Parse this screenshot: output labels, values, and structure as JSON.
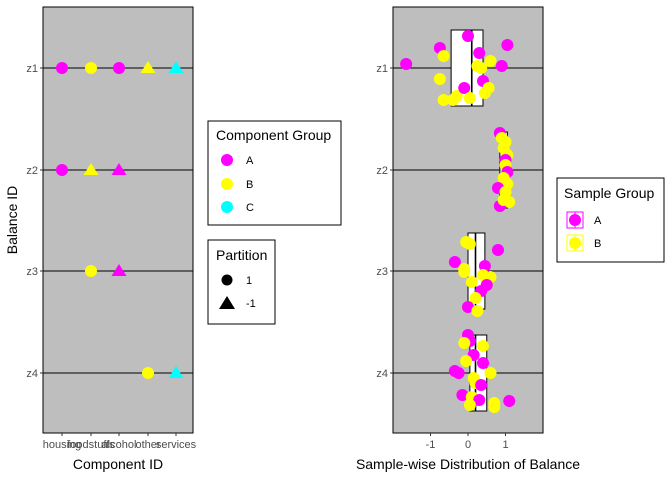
{
  "chart_data": [
    {
      "type": "scatter",
      "xlabel": "Component ID",
      "ylabel": "Balance ID",
      "x_categories": [
        "housing",
        "foodstuffs",
        "alcohol",
        "other",
        "services"
      ],
      "y_categories": [
        "z1",
        "z2",
        "z3",
        "z4"
      ],
      "group_colors": {
        "A": "#ff00ff",
        "B": "#ffff00",
        "C": "#00ffff"
      },
      "points": [
        {
          "balance": "z1",
          "component": "housing",
          "group": "A",
          "partition": "1"
        },
        {
          "balance": "z1",
          "component": "foodstuffs",
          "group": "B",
          "partition": "1"
        },
        {
          "balance": "z1",
          "component": "alcohol",
          "group": "A",
          "partition": "1"
        },
        {
          "balance": "z1",
          "component": "other",
          "group": "B",
          "partition": "-1"
        },
        {
          "balance": "z1",
          "component": "services",
          "group": "C",
          "partition": "-1"
        },
        {
          "balance": "z2",
          "component": "housing",
          "group": "A",
          "partition": "1"
        },
        {
          "balance": "z2",
          "component": "foodstuffs",
          "group": "B",
          "partition": "-1"
        },
        {
          "balance": "z2",
          "component": "alcohol",
          "group": "A",
          "partition": "-1"
        },
        {
          "balance": "z3",
          "component": "foodstuffs",
          "group": "B",
          "partition": "1"
        },
        {
          "balance": "z3",
          "component": "alcohol",
          "group": "A",
          "partition": "-1"
        },
        {
          "balance": "z4",
          "component": "other",
          "group": "B",
          "partition": "1"
        },
        {
          "balance": "z4",
          "component": "services",
          "group": "C",
          "partition": "-1"
        }
      ],
      "legends": [
        {
          "title": "Component Group",
          "items": [
            {
              "label": "A",
              "color": "#ff00ff"
            },
            {
              "label": "B",
              "color": "#ffff00"
            },
            {
              "label": "C",
              "color": "#00ffff"
            }
          ]
        },
        {
          "title": "Partition",
          "items": [
            {
              "label": "1",
              "shape": "circle"
            },
            {
              "label": "-1",
              "shape": "triangle"
            }
          ]
        }
      ]
    },
    {
      "type": "boxplot+jitter",
      "xlabel": "Sample-wise Distribution of Balance",
      "ylabel": "",
      "xlim": [
        -2.0,
        2.0
      ],
      "x_ticks": [
        -1,
        0,
        1
      ],
      "y_categories": [
        "z1",
        "z2",
        "z3",
        "z4"
      ],
      "group_colors": {
        "A": "#ff00ff",
        "B": "#ffff00"
      },
      "boxes": [
        {
          "balance": "z1",
          "q1": -0.45,
          "median": 0.1,
          "q3": 0.4
        },
        {
          "balance": "z2",
          "q1": 0.85,
          "median": 0.95,
          "q3": 1.05
        },
        {
          "balance": "z3",
          "q1": 0.0,
          "median": 0.2,
          "q3": 0.45
        },
        {
          "balance": "z4",
          "q1": 0.05,
          "median": 0.2,
          "q3": 0.5
        }
      ],
      "points": [
        {
          "balance": "z1",
          "value": -1.65,
          "group": "A",
          "jitter": 0.04
        },
        {
          "balance": "z1",
          "value": -0.75,
          "group": "A",
          "jitter": 0.2
        },
        {
          "balance": "z1",
          "value": -0.65,
          "group": "B",
          "jitter": 0.12
        },
        {
          "balance": "z1",
          "value": -0.75,
          "group": "B",
          "jitter": -0.11
        },
        {
          "balance": "z1",
          "value": -0.65,
          "group": "B",
          "jitter": -0.32
        },
        {
          "balance": "z1",
          "value": -0.4,
          "group": "B",
          "jitter": -0.32
        },
        {
          "balance": "z1",
          "value": -0.3,
          "group": "B",
          "jitter": -0.28
        },
        {
          "balance": "z1",
          "value": -0.1,
          "group": "A",
          "jitter": -0.2
        },
        {
          "balance": "z1",
          "value": 0.0,
          "group": "A",
          "jitter": 0.32
        },
        {
          "balance": "z1",
          "value": 0.05,
          "group": "B",
          "jitter": -0.3
        },
        {
          "balance": "z1",
          "value": 0.25,
          "group": "B",
          "jitter": 0.02
        },
        {
          "balance": "z1",
          "value": 0.35,
          "group": "B",
          "jitter": 0.0
        },
        {
          "balance": "z1",
          "value": 0.4,
          "group": "A",
          "jitter": -0.13
        },
        {
          "balance": "z1",
          "value": 0.45,
          "group": "B",
          "jitter": -0.25
        },
        {
          "balance": "z1",
          "value": 0.6,
          "group": "B",
          "jitter": 0.07
        },
        {
          "balance": "z1",
          "value": 0.9,
          "group": "A",
          "jitter": 0.02
        },
        {
          "balance": "z1",
          "value": 1.05,
          "group": "A",
          "jitter": 0.23
        },
        {
          "balance": "z1",
          "value": 0.55,
          "group": "B",
          "jitter": -0.2
        },
        {
          "balance": "z1",
          "value": 0.3,
          "group": "A",
          "jitter": 0.15
        },
        {
          "balance": "z2",
          "value": 0.85,
          "group": "A",
          "jitter": 0.37
        },
        {
          "balance": "z2",
          "value": 0.9,
          "group": "B",
          "jitter": 0.32
        },
        {
          "balance": "z2",
          "value": 1.0,
          "group": "B",
          "jitter": 0.28
        },
        {
          "balance": "z2",
          "value": 0.95,
          "group": "B",
          "jitter": 0.22
        },
        {
          "balance": "z2",
          "value": 1.05,
          "group": "B",
          "jitter": 0.15
        },
        {
          "balance": "z2",
          "value": 1.0,
          "group": "A",
          "jitter": 0.1
        },
        {
          "balance": "z2",
          "value": 1.0,
          "group": "B",
          "jitter": 0.05
        },
        {
          "balance": "z2",
          "value": 1.05,
          "group": "A",
          "jitter": -0.02
        },
        {
          "balance": "z2",
          "value": 0.95,
          "group": "B",
          "jitter": -0.08
        },
        {
          "balance": "z2",
          "value": 1.05,
          "group": "B",
          "jitter": -0.14
        },
        {
          "balance": "z2",
          "value": 0.8,
          "group": "A",
          "jitter": -0.18
        },
        {
          "balance": "z2",
          "value": 1.0,
          "group": "B",
          "jitter": -0.22
        },
        {
          "balance": "z2",
          "value": 1.1,
          "group": "B",
          "jitter": -0.32
        },
        {
          "balance": "z2",
          "value": 0.85,
          "group": "A",
          "jitter": -0.36
        },
        {
          "balance": "z2",
          "value": 0.95,
          "group": "B",
          "jitter": -0.3
        },
        {
          "balance": "z3",
          "value": -0.05,
          "group": "B",
          "jitter": 0.29
        },
        {
          "balance": "z3",
          "value": 0.05,
          "group": "B",
          "jitter": 0.27
        },
        {
          "balance": "z3",
          "value": 0.8,
          "group": "A",
          "jitter": 0.21
        },
        {
          "balance": "z3",
          "value": -0.35,
          "group": "A",
          "jitter": 0.09
        },
        {
          "balance": "z3",
          "value": -0.1,
          "group": "B",
          "jitter": 0.02
        },
        {
          "balance": "z3",
          "value": 0.45,
          "group": "A",
          "jitter": 0.05
        },
        {
          "balance": "z3",
          "value": -0.1,
          "group": "B",
          "jitter": -0.01
        },
        {
          "balance": "z3",
          "value": 0.4,
          "group": "B",
          "jitter": -0.04
        },
        {
          "balance": "z3",
          "value": 0.6,
          "group": "B",
          "jitter": -0.06
        },
        {
          "balance": "z3",
          "value": 0.1,
          "group": "B",
          "jitter": -0.11
        },
        {
          "balance": "z3",
          "value": 0.5,
          "group": "A",
          "jitter": -0.14
        },
        {
          "balance": "z3",
          "value": 0.35,
          "group": "A",
          "jitter": -0.2
        },
        {
          "balance": "z3",
          "value": 0.2,
          "group": "B",
          "jitter": -0.27
        },
        {
          "balance": "z3",
          "value": 0.0,
          "group": "A",
          "jitter": -0.36
        },
        {
          "balance": "z3",
          "value": 0.25,
          "group": "B",
          "jitter": -0.4
        },
        {
          "balance": "z4",
          "value": 0.0,
          "group": "A",
          "jitter": 0.38
        },
        {
          "balance": "z4",
          "value": 0.05,
          "group": "A",
          "jitter": 0.32
        },
        {
          "balance": "z4",
          "value": -0.1,
          "group": "B",
          "jitter": 0.3
        },
        {
          "balance": "z4",
          "value": 0.4,
          "group": "B",
          "jitter": 0.27
        },
        {
          "balance": "z4",
          "value": 0.15,
          "group": "A",
          "jitter": 0.18
        },
        {
          "balance": "z4",
          "value": -0.05,
          "group": "B",
          "jitter": 0.12
        },
        {
          "balance": "z4",
          "value": 0.4,
          "group": "A",
          "jitter": 0.1
        },
        {
          "balance": "z4",
          "value": -0.35,
          "group": "A",
          "jitter": 0.02
        },
        {
          "balance": "z4",
          "value": -0.25,
          "group": "A",
          "jitter": 0.0
        },
        {
          "balance": "z4",
          "value": 0.6,
          "group": "B",
          "jitter": 0.0
        },
        {
          "balance": "z4",
          "value": 0.15,
          "group": "B",
          "jitter": -0.05
        },
        {
          "balance": "z4",
          "value": 0.2,
          "group": "B",
          "jitter": -0.1
        },
        {
          "balance": "z4",
          "value": 0.35,
          "group": "A",
          "jitter": -0.12
        },
        {
          "balance": "z4",
          "value": -0.15,
          "group": "A",
          "jitter": -0.22
        },
        {
          "balance": "z4",
          "value": 0.1,
          "group": "B",
          "jitter": -0.24
        },
        {
          "balance": "z4",
          "value": 0.3,
          "group": "A",
          "jitter": -0.27
        },
        {
          "balance": "z4",
          "value": 1.1,
          "group": "A",
          "jitter": -0.28
        },
        {
          "balance": "z4",
          "value": 0.05,
          "group": "B",
          "jitter": -0.32
        },
        {
          "balance": "z4",
          "value": 0.7,
          "group": "B",
          "jitter": -0.3
        },
        {
          "balance": "z4",
          "value": 0.7,
          "group": "B",
          "jitter": -0.34
        }
      ],
      "legends": [
        {
          "title": "Sample Group",
          "items": [
            {
              "label": "A",
              "color": "#ff00ff"
            },
            {
              "label": "B",
              "color": "#ffff00"
            }
          ]
        }
      ]
    }
  ]
}
